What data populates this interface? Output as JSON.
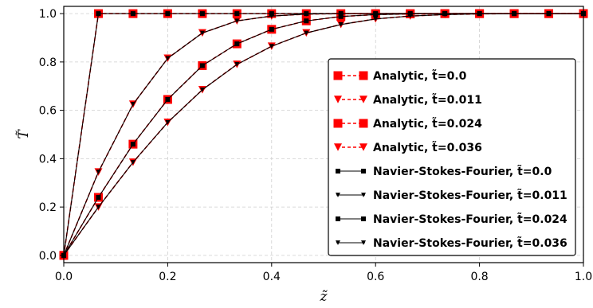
{
  "chart_data": {
    "type": "line",
    "xlabel": "z̃",
    "ylabel": "T̃",
    "xlim": [
      0.0,
      1.0
    ],
    "ylim": [
      -0.03,
      1.03
    ],
    "x_ticks": [
      "0.0",
      "0.2",
      "0.4",
      "0.6",
      "0.8",
      "1.0"
    ],
    "y_ticks": [
      "0.0",
      "0.2",
      "0.4",
      "0.6",
      "0.8",
      "1.0"
    ],
    "grid": true,
    "legend_position": "lower-right",
    "x": [
      0.0,
      0.0667,
      0.1333,
      0.2,
      0.2667,
      0.3333,
      0.4,
      0.4667,
      0.5333,
      0.6,
      0.6667,
      0.7333,
      0.8,
      0.8667,
      0.9333,
      1.0
    ],
    "series": [
      {
        "name": "Analytic, t̃=0.0",
        "kind": "analytic",
        "marker": "square",
        "color": "#ff0000",
        "values": [
          0.0,
          1.0,
          1.0,
          1.0,
          1.0,
          1.0,
          1.0,
          1.0,
          1.0,
          1.0,
          1.0,
          1.0,
          1.0,
          1.0,
          1.0,
          1.0
        ]
      },
      {
        "name": "Analytic, t̃=0.011",
        "kind": "analytic",
        "marker": "triangle-down",
        "color": "#ff0000",
        "values": [
          0.0,
          0.345,
          0.625,
          0.815,
          0.92,
          0.97,
          0.99,
          0.998,
          1.0,
          1.0,
          1.0,
          1.0,
          1.0,
          1.0,
          1.0,
          1.0
        ]
      },
      {
        "name": "Analytic, t̃=0.024",
        "kind": "analytic",
        "marker": "square",
        "color": "#ff0000",
        "values": [
          0.0,
          0.24,
          0.46,
          0.645,
          0.785,
          0.875,
          0.935,
          0.97,
          0.988,
          0.996,
          0.999,
          1.0,
          1.0,
          1.0,
          1.0,
          1.0
        ]
      },
      {
        "name": "Analytic, t̃=0.036",
        "kind": "analytic",
        "marker": "triangle-down",
        "color": "#ff0000",
        "values": [
          0.0,
          0.2,
          0.385,
          0.55,
          0.685,
          0.79,
          0.865,
          0.92,
          0.955,
          0.978,
          0.99,
          0.996,
          0.999,
          1.0,
          1.0,
          1.0
        ]
      },
      {
        "name": "Navier-Stokes-Fourier, t̃=0.0",
        "kind": "numeric",
        "marker": "square",
        "color": "#000000",
        "values": [
          0.0,
          1.0,
          1.0,
          1.0,
          1.0,
          1.0,
          1.0,
          1.0,
          1.0,
          1.0,
          1.0,
          1.0,
          1.0,
          1.0,
          1.0,
          1.0
        ]
      },
      {
        "name": "Navier-Stokes-Fourier, t̃=0.011",
        "kind": "numeric",
        "marker": "triangle-down",
        "color": "#000000",
        "values": [
          0.0,
          0.345,
          0.625,
          0.815,
          0.92,
          0.97,
          0.99,
          0.998,
          1.0,
          1.0,
          1.0,
          1.0,
          1.0,
          1.0,
          1.0,
          1.0
        ]
      },
      {
        "name": "Navier-Stokes-Fourier, t̃=0.024",
        "kind": "numeric",
        "marker": "square",
        "color": "#000000",
        "values": [
          0.0,
          0.24,
          0.46,
          0.645,
          0.785,
          0.875,
          0.935,
          0.97,
          0.988,
          0.996,
          0.999,
          1.0,
          1.0,
          1.0,
          1.0,
          1.0
        ]
      },
      {
        "name": "Navier-Stokes-Fourier, t̃=0.036",
        "kind": "numeric",
        "marker": "triangle-down",
        "color": "#000000",
        "values": [
          0.0,
          0.2,
          0.385,
          0.55,
          0.685,
          0.79,
          0.865,
          0.92,
          0.955,
          0.978,
          0.99,
          0.996,
          0.999,
          1.0,
          1.0,
          1.0
        ]
      }
    ]
  }
}
